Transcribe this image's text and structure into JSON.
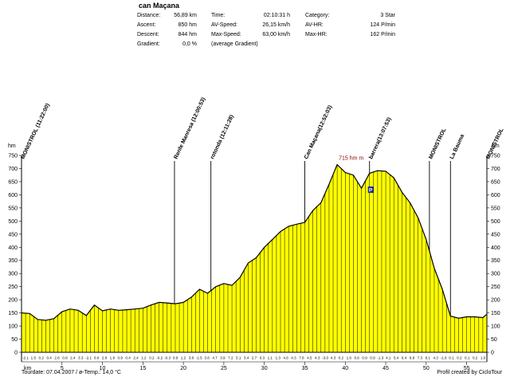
{
  "title": "can Maçana",
  "stats": {
    "distance_label": "Distance:",
    "distance": "56,89 km",
    "ascent_label": "Ascent:",
    "ascent": "850 hm",
    "descent_label": "Descent:",
    "descent": "844 hm",
    "gradient_label": "Gradient:",
    "gradient": "0,0 %",
    "time_label": "Time:",
    "time": "02:10:31 h",
    "avspeed_label": "AV-Speed:",
    "avspeed": "26,15 km/h",
    "maxspeed_label": "Max-Speed:",
    "maxspeed": "63,00 km/h",
    "avg_gradient_note": "(average Gradient)",
    "category_label": "Category:",
    "category": "3 Star",
    "avhr_label": "AV-HR:",
    "avhr": "124 P/min",
    "maxhr_label": "Max-HR:",
    "maxhr": "162 P/min"
  },
  "footer": {
    "left": "Tourdate: 07.04.2007  /  ø-Temp.: 14,0 °C",
    "right": "Profil created by CicloTour"
  },
  "colors": {
    "fill": "#ffff00",
    "outline": "#000000",
    "marker_text": "#8b0000",
    "badge": "#1f2f9f"
  },
  "chart_data": {
    "type": "area",
    "xlabel": "km",
    "ylabel": "hm",
    "xlim": [
      0,
      57.5
    ],
    "ylim": [
      0,
      750
    ],
    "x_ticks": [
      5,
      10,
      15,
      20,
      25,
      30,
      35,
      40,
      45,
      50,
      55
    ],
    "y_ticks": [
      0,
      50,
      100,
      150,
      200,
      250,
      300,
      350,
      400,
      450,
      500,
      550,
      600,
      650,
      700,
      750
    ],
    "profile": [
      [
        0,
        150
      ],
      [
        1,
        148
      ],
      [
        2,
        125
      ],
      [
        3,
        122
      ],
      [
        4,
        128
      ],
      [
        5,
        155
      ],
      [
        6,
        165
      ],
      [
        7,
        160
      ],
      [
        8,
        140
      ],
      [
        9,
        180
      ],
      [
        10,
        158
      ],
      [
        11,
        165
      ],
      [
        12,
        160
      ],
      [
        13,
        162
      ],
      [
        14,
        165
      ],
      [
        15,
        168
      ],
      [
        16,
        180
      ],
      [
        17,
        190
      ],
      [
        18,
        188
      ],
      [
        19,
        185
      ],
      [
        20,
        190
      ],
      [
        21,
        210
      ],
      [
        22,
        240
      ],
      [
        23,
        225
      ],
      [
        24,
        250
      ],
      [
        25,
        262
      ],
      [
        26,
        255
      ],
      [
        27,
        285
      ],
      [
        28,
        340
      ],
      [
        29,
        360
      ],
      [
        30,
        400
      ],
      [
        31,
        430
      ],
      [
        32,
        460
      ],
      [
        33,
        480
      ],
      [
        34,
        488
      ],
      [
        35,
        495
      ],
      [
        36,
        540
      ],
      [
        37,
        570
      ],
      [
        38,
        640
      ],
      [
        39,
        715
      ],
      [
        40,
        685
      ],
      [
        41,
        675
      ],
      [
        42,
        625
      ],
      [
        43,
        682
      ],
      [
        44,
        692
      ],
      [
        45,
        690
      ],
      [
        46,
        665
      ],
      [
        47,
        610
      ],
      [
        48,
        570
      ],
      [
        49,
        512
      ],
      [
        50,
        430
      ],
      [
        51,
        320
      ],
      [
        52,
        240
      ],
      [
        53,
        138
      ],
      [
        54,
        130
      ],
      [
        55,
        135
      ],
      [
        56,
        135
      ],
      [
        57,
        132
      ],
      [
        57.5,
        145
      ]
    ],
    "peak_label": "715 hm m",
    "peak_km": 39,
    "waypoints": [
      {
        "km": 0,
        "label": "MONISTROL (11:22:00)"
      },
      {
        "km": 18.9,
        "label": "Renfe Manresa (12:00:53)"
      },
      {
        "km": 23.4,
        "label": "rotonda (12:11:28)"
      },
      {
        "km": 35.0,
        "label": "Can Maçana(12:52:03)"
      },
      {
        "km": 43.0,
        "label": "barrera(13:07:53)"
      },
      {
        "km": 50.4,
        "label": "MONISTROL"
      },
      {
        "km": 53.0,
        "label": "La Bauma"
      },
      {
        "km": 57.5,
        "label": "MONISTROL"
      }
    ],
    "parking_km": 43.0,
    "parking_label": "P",
    "segment_grades": [
      "-2.1",
      "1.5",
      "0.2",
      "0.4",
      "2.8",
      "0.8",
      "2.4",
      "3.3",
      "-2.1",
      "0.6",
      "2.8",
      "1.9",
      "0.9",
      "0.4",
      "2.4",
      "1.2",
      "0.2",
      "-0.2",
      "-0.3",
      "0.9",
      "1.2",
      "3.8",
      "-1.5",
      "3.8",
      "4.7",
      "3.9",
      "7.2",
      "5.1",
      "3.4",
      "2.7",
      "0.3",
      "1.1",
      "1.3",
      "4.6",
      "4.3",
      "7.8",
      "4.5",
      "4.3",
      "-3.0",
      "4.3",
      "0.2",
      "1.6",
      "0.6",
      "0.9",
      "0.9",
      "-1.3",
      "4.1",
      "5.4",
      "6.4",
      "6.8",
      "7.3",
      "8.1",
      "4.3",
      "-1.6",
      "0.1",
      "0.2",
      "0.1",
      "0.2",
      "1.0"
    ]
  }
}
